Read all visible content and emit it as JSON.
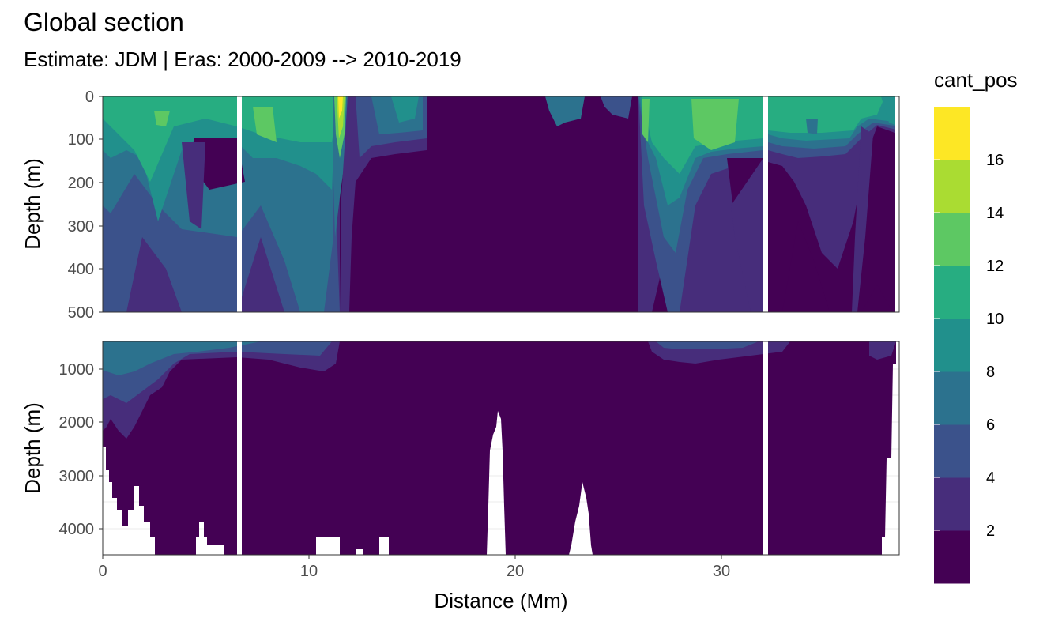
{
  "title": "Global section",
  "subtitle": "Estimate: JDM  | Eras: 2000-2009 --> 2010-2019",
  "chart_data": {
    "type": "heatmap",
    "xlabel": "Distance (Mm)",
    "ylabel": "Depth (m)",
    "x_ticks": [
      "0",
      "10",
      "20",
      "30"
    ],
    "xlim": [
      0,
      38.5
    ],
    "panels": [
      {
        "ylim": [
          0,
          500
        ],
        "y_ticks": [
          "0",
          "100",
          "200",
          "300",
          "400",
          "500"
        ],
        "y_tick_values": [
          0,
          100,
          200,
          300,
          400,
          500
        ]
      },
      {
        "ylim": [
          500,
          4500
        ],
        "y_ticks": [
          "1000",
          "2000",
          "3000",
          "4000"
        ],
        "y_tick_values": [
          1000,
          2000,
          3000,
          4000
        ]
      }
    ],
    "gaps_at_distance": [
      6.7,
      32.2
    ],
    "legend": {
      "title": "cant_pos",
      "placement": "right",
      "labels": [
        "2",
        "4",
        "6",
        "8",
        "10",
        "12",
        "14",
        "16"
      ],
      "bins": [
        0,
        2,
        4,
        6,
        8,
        10,
        12,
        14,
        16,
        18
      ],
      "colors": [
        "#440154",
        "#472D7B",
        "#3B528B",
        "#2C728E",
        "#21908C",
        "#27AD81",
        "#5DC863",
        "#AADC32",
        "#FDE725"
      ]
    },
    "upper_panel_regions": [
      {
        "x": [
          0.2,
          4.5
        ],
        "depth": [
          0,
          120
        ],
        "value_class": 5
      },
      {
        "x": [
          6.8,
          10.8
        ],
        "depth": [
          0,
          120
        ],
        "value_class": 5
      },
      {
        "x": [
          11.2,
          11.6
        ],
        "depth": [
          0,
          80
        ],
        "value_class": 8
      },
      {
        "x": [
          15.8,
          26.0
        ],
        "depth": [
          0,
          500
        ],
        "value_class": 0
      },
      {
        "x": [
          28.5,
          32.0
        ],
        "depth": [
          0,
          120
        ],
        "value_class": 6
      },
      {
        "x": [
          32.4,
          36.5
        ],
        "depth": [
          0,
          140
        ],
        "value_class": 5
      }
    ]
  }
}
